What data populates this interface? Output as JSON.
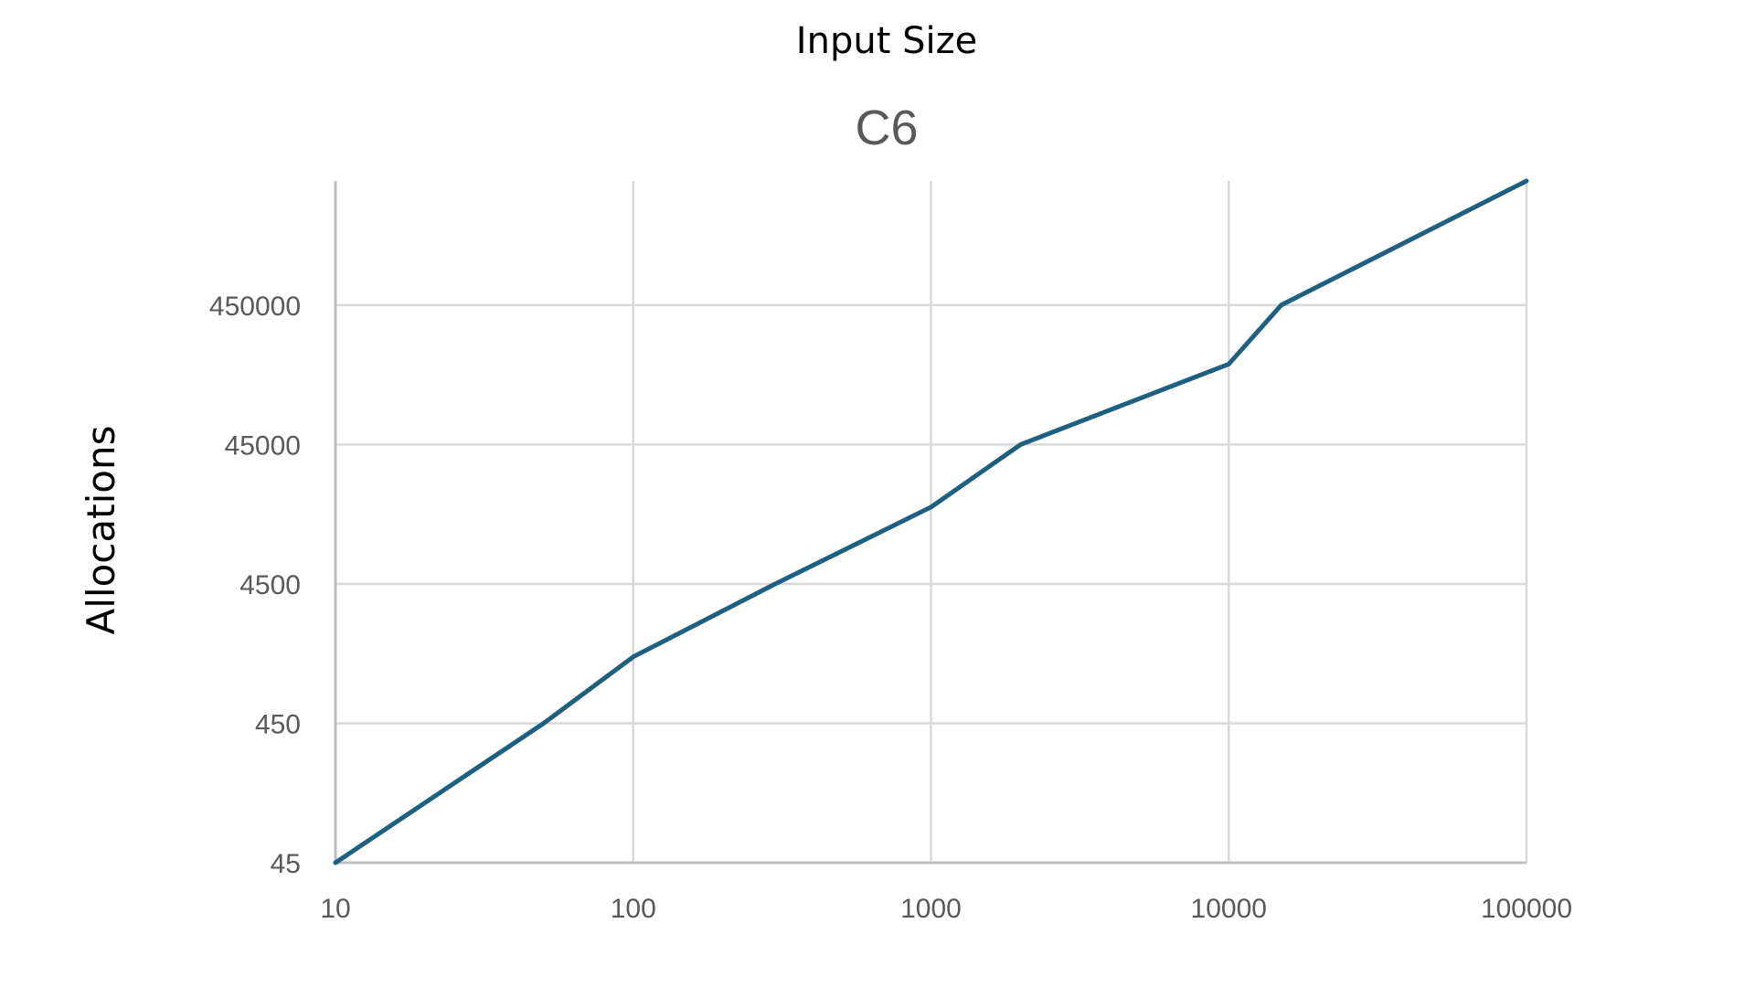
{
  "chart_data": {
    "type": "line",
    "top_label": "Input Size",
    "title": "C6",
    "xlabel": "",
    "ylabel": "Allocations",
    "x_scale": "log",
    "y_scale": "log",
    "xlim": [
      10,
      100000
    ],
    "ylim": [
      45,
      3500000
    ],
    "x_ticks": [
      "10",
      "100",
      "1000",
      "10000",
      "100000"
    ],
    "y_ticks": [
      "45",
      "450",
      "4500",
      "45000",
      "450000"
    ],
    "grid": true,
    "series": [
      {
        "color": "#1f5f80",
        "x": [
          10,
          50,
          100,
          300,
          1000,
          2000,
          10000,
          15000,
          100000
        ],
        "y": [
          45,
          450,
          1350,
          4500,
          16000,
          45000,
          170000,
          450000,
          3500000
        ]
      }
    ]
  }
}
